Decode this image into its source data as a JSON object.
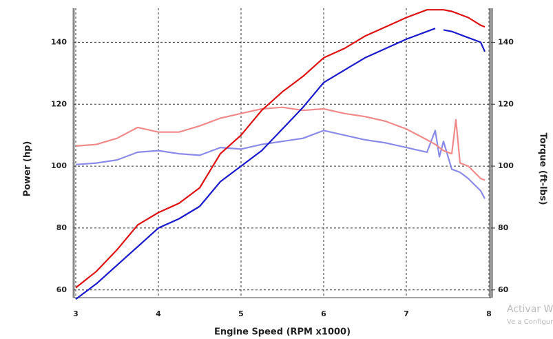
{
  "chart_data": {
    "type": "line",
    "x_label": "Engine Speed (RPM x1000)",
    "y_label": "Power (hp)",
    "y2_label": "Torque (ft-lbs)",
    "x": [
      3.0,
      3.25,
      3.5,
      3.75,
      4.0,
      4.25,
      4.5,
      4.75,
      5.0,
      5.25,
      5.5,
      5.75,
      6.0,
      6.25,
      6.5,
      6.75,
      7.0,
      7.25,
      7.35,
      7.4,
      7.45,
      7.55,
      7.6,
      7.65,
      7.75,
      7.9,
      7.95
    ],
    "series": [
      {
        "color": "#8a8ae8",
        "axis": "y2",
        "values": [
          100.5,
          101,
          102,
          104.5,
          105,
          104,
          103.5,
          106,
          105.5,
          107,
          108,
          109,
          111.5,
          110,
          108.5,
          107.5,
          106,
          104.5,
          111.5,
          103,
          108,
          99,
          98.5,
          98,
          96,
          92,
          89.5
        ]
      },
      {
        "color": "#f08a8a",
        "axis": "y2",
        "values": [
          106.5,
          107,
          109,
          112.5,
          111,
          111,
          113,
          115.5,
          117,
          118.5,
          119,
          118,
          118.5,
          117,
          116,
          114.5,
          112,
          108.5,
          107,
          106,
          105,
          104,
          115,
          101,
          100,
          96,
          95.5
        ]
      },
      {
        "color": "#1a1acc",
        "values": [
          57,
          62,
          68,
          74,
          80,
          83,
          87,
          95,
          100,
          105,
          112,
          119,
          127,
          131,
          135,
          138,
          141,
          143.5,
          144.5,
          null,
          144,
          143.5,
          143,
          142.5,
          141.5,
          140,
          137
        ]
      },
      {
        "color": "#dd1111",
        "values": [
          60.7,
          66,
          73,
          81,
          85,
          88,
          93,
          104,
          110,
          118,
          124,
          129,
          135,
          138,
          142,
          145,
          148,
          150.5,
          150.5,
          150.5,
          150.5,
          150,
          149.5,
          149,
          148,
          145.5,
          145
        ]
      }
    ],
    "xlim": [
      2.975,
      8.025
    ],
    "ylim": [
      57.5,
      151
    ],
    "y2lim": [
      57.5,
      151
    ],
    "xticks": [
      3,
      4,
      5,
      6,
      7,
      8
    ],
    "yticks": [
      60,
      80,
      100,
      120,
      140
    ],
    "y2ticks": [
      60,
      80,
      100,
      120,
      140
    ],
    "grid": true
  },
  "overlay": {
    "line1": "Activar Wi",
    "line2": "Ve a Configur"
  }
}
